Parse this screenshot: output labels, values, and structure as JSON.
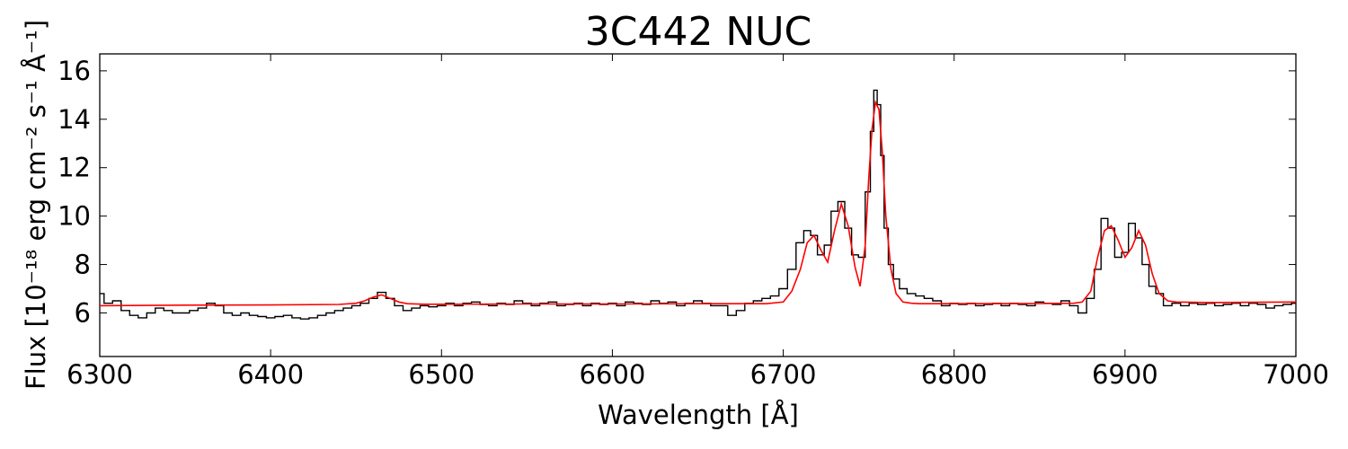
{
  "chart_data": {
    "type": "line",
    "title": "3C442 NUC",
    "xlabel": "Wavelength [Å]",
    "ylabel": "Flux [10⁻¹⁸ erg cm⁻² s⁻¹ Å⁻¹]",
    "xlim": [
      6300,
      7000
    ],
    "ylim": [
      4.2,
      16.7
    ],
    "xticks": [
      6300,
      6400,
      6500,
      6600,
      6700,
      6800,
      6900,
      7000
    ],
    "yticks": [
      6,
      8,
      10,
      12,
      14,
      16
    ],
    "grid": false,
    "colors": {
      "observed": "#000000",
      "model": "#ff0000"
    },
    "series": [
      {
        "role": "observed",
        "style": "steps",
        "x": [
          6300,
          6305,
          6310,
          6315,
          6320,
          6325,
          6330,
          6335,
          6340,
          6345,
          6350,
          6355,
          6360,
          6365,
          6370,
          6375,
          6380,
          6385,
          6390,
          6395,
          6400,
          6405,
          6410,
          6415,
          6420,
          6425,
          6430,
          6435,
          6440,
          6445,
          6450,
          6455,
          6460,
          6465,
          6470,
          6475,
          6480,
          6485,
          6490,
          6495,
          6500,
          6505,
          6510,
          6515,
          6520,
          6525,
          6530,
          6535,
          6540,
          6545,
          6550,
          6555,
          6560,
          6565,
          6570,
          6575,
          6580,
          6585,
          6590,
          6595,
          6600,
          6605,
          6610,
          6615,
          6620,
          6625,
          6630,
          6635,
          6640,
          6645,
          6650,
          6655,
          6660,
          6665,
          6670,
          6675,
          6680,
          6685,
          6690,
          6695,
          6700,
          6705,
          6710,
          6714,
          6718,
          6722,
          6726,
          6730,
          6734,
          6738,
          6742,
          6746,
          6750,
          6752,
          6754,
          6756,
          6758,
          6760,
          6763,
          6766,
          6770,
          6775,
          6780,
          6785,
          6790,
          6795,
          6800,
          6805,
          6810,
          6815,
          6820,
          6825,
          6830,
          6835,
          6840,
          6845,
          6850,
          6855,
          6860,
          6865,
          6870,
          6875,
          6880,
          6884,
          6888,
          6892,
          6896,
          6900,
          6904,
          6908,
          6912,
          6916,
          6920,
          6925,
          6930,
          6935,
          6940,
          6945,
          6950,
          6955,
          6960,
          6965,
          6970,
          6975,
          6980,
          6985,
          6990,
          6995,
          7000
        ],
        "y": [
          6.8,
          6.4,
          6.5,
          6.1,
          5.9,
          5.8,
          6.0,
          6.2,
          6.1,
          6.0,
          6.0,
          6.1,
          6.2,
          6.4,
          6.3,
          6.0,
          5.9,
          6.0,
          5.9,
          5.85,
          5.8,
          5.85,
          5.9,
          5.8,
          5.75,
          5.8,
          5.9,
          6.0,
          6.1,
          6.2,
          6.3,
          6.4,
          6.6,
          6.85,
          6.6,
          6.3,
          6.1,
          6.2,
          6.3,
          6.25,
          6.3,
          6.4,
          6.3,
          6.4,
          6.45,
          6.35,
          6.3,
          6.4,
          6.35,
          6.5,
          6.4,
          6.3,
          6.4,
          6.45,
          6.3,
          6.35,
          6.4,
          6.3,
          6.4,
          6.35,
          6.4,
          6.3,
          6.45,
          6.4,
          6.35,
          6.5,
          6.4,
          6.45,
          6.3,
          6.4,
          6.5,
          6.4,
          6.3,
          6.3,
          5.9,
          6.1,
          6.4,
          6.5,
          6.6,
          6.7,
          7.0,
          7.8,
          8.9,
          9.4,
          9.2,
          8.4,
          8.8,
          10.2,
          10.6,
          9.5,
          8.4,
          8.3,
          11.0,
          13.5,
          15.2,
          14.6,
          12.5,
          9.5,
          8.0,
          7.4,
          7.0,
          6.8,
          6.7,
          6.6,
          6.5,
          6.3,
          6.4,
          6.35,
          6.4,
          6.3,
          6.35,
          6.4,
          6.3,
          6.4,
          6.35,
          6.3,
          6.45,
          6.4,
          6.35,
          6.5,
          6.3,
          6.0,
          6.6,
          7.8,
          9.9,
          9.5,
          8.3,
          8.5,
          9.7,
          9.1,
          8.0,
          7.1,
          6.8,
          6.3,
          6.4,
          6.3,
          6.4,
          6.35,
          6.4,
          6.3,
          6.35,
          6.4,
          6.3,
          6.4,
          6.35,
          6.2,
          6.3,
          6.35,
          6.4
        ]
      },
      {
        "role": "model",
        "style": "line",
        "x": [
          6300,
          6350,
          6400,
          6440,
          6450,
          6455,
          6460,
          6465,
          6470,
          6475,
          6480,
          6490,
          6500,
          6550,
          6600,
          6650,
          6690,
          6700,
          6705,
          6710,
          6714,
          6718,
          6722,
          6726,
          6730,
          6734,
          6738,
          6742,
          6745,
          6748,
          6750,
          6752,
          6754,
          6756,
          6758,
          6760,
          6763,
          6766,
          6770,
          6775,
          6780,
          6790,
          6800,
          6850,
          6870,
          6875,
          6880,
          6884,
          6888,
          6892,
          6896,
          6900,
          6904,
          6908,
          6912,
          6916,
          6920,
          6925,
          6930,
          6950,
          7000
        ],
        "y": [
          6.3,
          6.32,
          6.33,
          6.35,
          6.4,
          6.5,
          6.65,
          6.75,
          6.6,
          6.45,
          6.38,
          6.36,
          6.36,
          6.37,
          6.37,
          6.38,
          6.38,
          6.45,
          6.9,
          7.8,
          8.9,
          9.2,
          8.6,
          8.1,
          9.4,
          10.5,
          9.6,
          7.9,
          7.1,
          8.8,
          11.5,
          13.6,
          14.7,
          14.4,
          12.6,
          10.0,
          7.8,
          6.8,
          6.45,
          6.4,
          6.38,
          6.38,
          6.38,
          6.39,
          6.4,
          6.45,
          6.9,
          8.3,
          9.4,
          9.6,
          9.0,
          8.3,
          8.7,
          9.4,
          8.8,
          7.6,
          6.8,
          6.5,
          6.45,
          6.43,
          6.45
        ]
      }
    ]
  }
}
